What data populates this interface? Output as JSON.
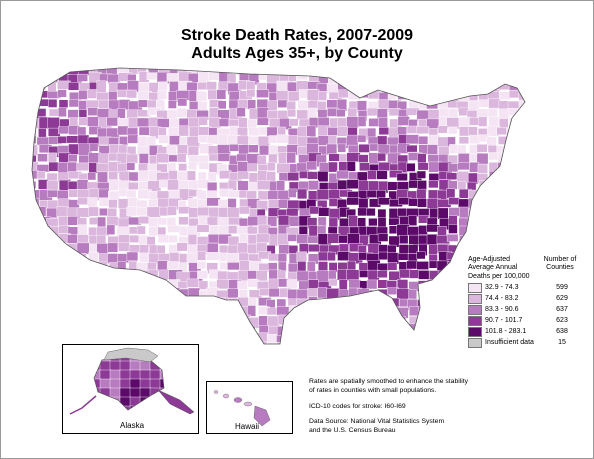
{
  "title": {
    "line1": "Stroke Death Rates, 2007-2009",
    "line2": "Adults Ages 35+, by County"
  },
  "legend": {
    "heading_lines": [
      "Age-Adjusted",
      "Average Annual",
      "Deaths per 100,000"
    ],
    "count_heading_lines": [
      "Number of",
      "Counties"
    ],
    "items": [
      {
        "range": "32.9 - 74.3",
        "count": "599",
        "color": "#f4e4f4"
      },
      {
        "range": "74.4 - 83.2",
        "count": "629",
        "color": "#dbb6dd"
      },
      {
        "range": "83.3 - 90.6",
        "count": "637",
        "color": "#b77bbf"
      },
      {
        "range": "90.7 - 101.7",
        "count": "623",
        "color": "#8c3a96"
      },
      {
        "range": "101.8 - 283.1",
        "count": "638",
        "color": "#5c0a6a"
      },
      {
        "range": "Insufficient data",
        "count": "15",
        "color": "#c9c9c9"
      }
    ]
  },
  "insets": {
    "alaska": "Alaska",
    "hawaii": "Hawaii"
  },
  "notes": {
    "smoothing": [
      "Rates are spatially smoothed to enhance the stability",
      "of rates in counties with small populations."
    ],
    "icd": "ICD-10 codes for stroke: I60-I69",
    "source": [
      "Data Source: National Vital Statistics System",
      "and the U.S. Census Bureau"
    ]
  }
}
